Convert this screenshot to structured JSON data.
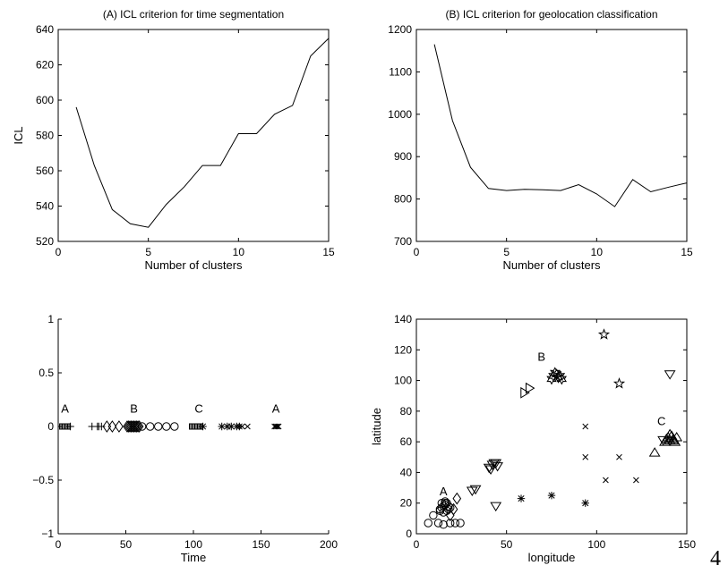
{
  "page_number": "4",
  "chart_data": [
    {
      "type": "line",
      "title": "(A) ICL criterion for time segmentation",
      "xlabel": "Number of clusters",
      "ylabel": "ICL",
      "xlim": [
        0,
        15
      ],
      "ylim": [
        520,
        640
      ],
      "xticks": [
        "0",
        "5",
        "10",
        "15"
      ],
      "yticks": [
        "520",
        "540",
        "560",
        "580",
        "600",
        "620",
        "640"
      ],
      "grid": false,
      "series": [
        {
          "x": [
            1,
            2,
            3,
            4,
            5,
            6,
            7,
            8,
            9,
            10,
            11,
            12,
            13,
            14,
            15
          ],
          "values": [
            596,
            563,
            538,
            530,
            528,
            541,
            551,
            563,
            563,
            581,
            581,
            592,
            597,
            625,
            635
          ]
        }
      ]
    },
    {
      "type": "line",
      "title": "(B) ICL criterion for geolocation classification",
      "xlabel": "Number of clusters",
      "ylabel": "",
      "xlim": [
        0,
        15
      ],
      "ylim": [
        700,
        1200
      ],
      "xticks": [
        "0",
        "5",
        "10",
        "15"
      ],
      "yticks": [
        "700",
        "800",
        "900",
        "1000",
        "1100",
        "1200"
      ],
      "grid": false,
      "series": [
        {
          "x": [
            1,
            2,
            3,
            4,
            5,
            6,
            7,
            8,
            9,
            10,
            11,
            12,
            13,
            14,
            15
          ],
          "values": [
            1165,
            985,
            875,
            825,
            820,
            823,
            822,
            820,
            834,
            812,
            782,
            846,
            817,
            828,
            838
          ]
        }
      ]
    },
    {
      "type": "scatter",
      "title": "",
      "xlabel": "Time",
      "ylabel": "",
      "xlim": [
        0,
        200
      ],
      "ylim": [
        -1,
        1
      ],
      "xticks": [
        "0",
        "50",
        "100",
        "150",
        "200"
      ],
      "yticks": [
        "−1",
        "−0.5",
        "0",
        "0.5",
        "1"
      ],
      "grid": false,
      "series": [
        {
          "marker": "square",
          "x": [
            3,
            4,
            5,
            6,
            7
          ],
          "values": [
            0,
            0,
            0,
            0,
            0
          ]
        },
        {
          "marker": "plus",
          "x": [
            9,
            25,
            29,
            30,
            32
          ],
          "values": [
            0,
            0,
            0,
            0,
            0
          ]
        },
        {
          "marker": "diamond",
          "x": [
            36,
            40,
            45
          ],
          "values": [
            0,
            0,
            0
          ]
        },
        {
          "marker": "diamond-dense",
          "x": [
            51,
            52,
            53,
            54,
            55,
            56,
            57,
            58,
            59,
            60
          ],
          "values": [
            0,
            0,
            0,
            0,
            0,
            0,
            0,
            0,
            0,
            0
          ]
        },
        {
          "marker": "circle",
          "x": [
            62,
            68,
            74,
            80,
            86
          ],
          "values": [
            0,
            0,
            0,
            0,
            0
          ]
        },
        {
          "marker": "square",
          "x": [
            99,
            100,
            101,
            102,
            103,
            104,
            105
          ],
          "values": [
            0,
            0,
            0,
            0,
            0,
            0,
            0
          ]
        },
        {
          "marker": "asterisk",
          "x": [
            107,
            121,
            125,
            128,
            132,
            134
          ],
          "values": [
            0,
            0,
            0,
            0,
            0,
            0
          ]
        },
        {
          "marker": "x",
          "x": [
            136,
            140
          ],
          "values": [
            0,
            0
          ]
        },
        {
          "marker": "x",
          "x": [
            160,
            161,
            162,
            163
          ],
          "values": [
            0,
            0,
            0,
            0
          ]
        }
      ],
      "annotations": [
        {
          "text": "A",
          "x": 5,
          "y": 0.13
        },
        {
          "text": "B",
          "x": 56,
          "y": 0.13
        },
        {
          "text": "C",
          "x": 104,
          "y": 0.13
        },
        {
          "text": "A",
          "x": 161,
          "y": 0.13
        }
      ]
    },
    {
      "type": "scatter",
      "title": "",
      "xlabel": "longitude",
      "ylabel": "latitude",
      "xlim": [
        0,
        160
      ],
      "ylim": [
        0,
        140
      ],
      "xticks": [
        "0",
        "50",
        "100",
        "150"
      ],
      "yticks": [
        "0",
        "20",
        "40",
        "60",
        "80",
        "100",
        "120",
        "140"
      ],
      "grid": false,
      "series": [
        {
          "marker": "circle",
          "x": [
            7,
            10,
            13,
            16,
            20,
            23,
            26,
            14,
            17
          ],
          "values": [
            7,
            12,
            7,
            6,
            7,
            7,
            7,
            15,
            20
          ]
        },
        {
          "marker": "circle-dense",
          "x": [
            14,
            15,
            16,
            17,
            18,
            19,
            20,
            15,
            17,
            19,
            16,
            18
          ],
          "values": [
            16,
            17,
            18,
            19,
            20,
            18,
            17,
            20,
            21,
            16,
            14,
            15
          ]
        },
        {
          "marker": "diamond",
          "x": [
            20,
            22,
            24
          ],
          "values": [
            12,
            16,
            23
          ]
        },
        {
          "marker": "tri-down",
          "x": [
            33,
            35,
            43,
            45,
            46,
            47,
            48,
            146,
            150
          ],
          "values": [
            28,
            29,
            43,
            45,
            46,
            46,
            44,
            61,
            104
          ]
        },
        {
          "marker": "tri-down",
          "x": [
            47,
            44
          ],
          "values": [
            18,
            42
          ]
        },
        {
          "marker": "tri-right",
          "x": [
            64,
            67
          ],
          "values": [
            92,
            95
          ]
        },
        {
          "marker": "hexagram",
          "x": [
            80,
            81,
            82,
            83,
            84,
            85,
            86
          ],
          "values": [
            101,
            103,
            105,
            104,
            102,
            103,
            101
          ]
        },
        {
          "marker": "asterisk",
          "x": [
            62,
            80,
            100
          ],
          "values": [
            23,
            25,
            20
          ]
        },
        {
          "marker": "x",
          "x": [
            100,
            100,
            112,
            120,
            130
          ],
          "values": [
            70,
            50,
            35,
            50,
            35
          ]
        },
        {
          "marker": "pentagram",
          "x": [
            111,
            120
          ],
          "values": [
            130,
            98
          ]
        },
        {
          "marker": "tri-up",
          "x": [
            141,
            147
          ],
          "values": [
            53,
            60
          ]
        },
        {
          "marker": "tri-up-dense",
          "x": [
            148,
            149,
            150,
            151,
            152,
            153,
            154,
            150,
            152
          ],
          "values": [
            62,
            63,
            61,
            64,
            62,
            60,
            63,
            65,
            61
          ]
        }
      ],
      "annotations": [
        {
          "text": "A",
          "x": 16,
          "y": 25
        },
        {
          "text": "B",
          "x": 74,
          "y": 113
        },
        {
          "text": "C",
          "x": 145,
          "y": 71
        }
      ]
    }
  ]
}
